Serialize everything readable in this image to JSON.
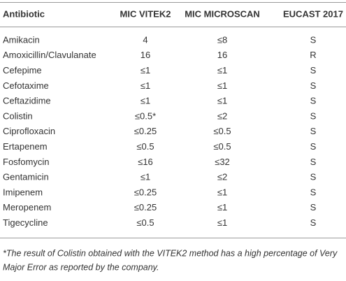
{
  "table": {
    "header": [
      "Antibiotic",
      "MIC VITEK2",
      "MIC MICROSCAN",
      "EUCAST 2017"
    ],
    "rows": [
      [
        "Amikacin",
        "4",
        "≤8",
        "S"
      ],
      [
        "Amoxicillin/Clavulanate",
        "16",
        "16",
        "R"
      ],
      [
        "Cefepime",
        "≤1",
        "≤1",
        "S"
      ],
      [
        "Cefotaxime",
        "≤1",
        "≤1",
        "S"
      ],
      [
        "Ceftazidime",
        "≤1",
        "≤1",
        "S"
      ],
      [
        "Colistin",
        "≤0.5*",
        "≤2",
        "S"
      ],
      [
        "Ciprofloxacin",
        "≤0.25",
        "≤0.5",
        "S"
      ],
      [
        "Ertapenem",
        "≤0.5",
        "≤0.5",
        "S"
      ],
      [
        "Fosfomycin",
        "≤16",
        "≤32",
        "S"
      ],
      [
        "Gentamicin",
        "≤1",
        "≤2",
        "S"
      ],
      [
        "Imipenem",
        "≤0.25",
        "≤1",
        "S"
      ],
      [
        "Meropenem",
        "≤0.25",
        "≤1",
        "S"
      ],
      [
        "Tigecycline",
        "≤0.5",
        "≤1",
        "S"
      ]
    ],
    "footnote": [
      "*The result of Colistin obtained with the VITEK2 method has a high percentage of Very",
      "Major Error as reported by the company."
    ]
  }
}
